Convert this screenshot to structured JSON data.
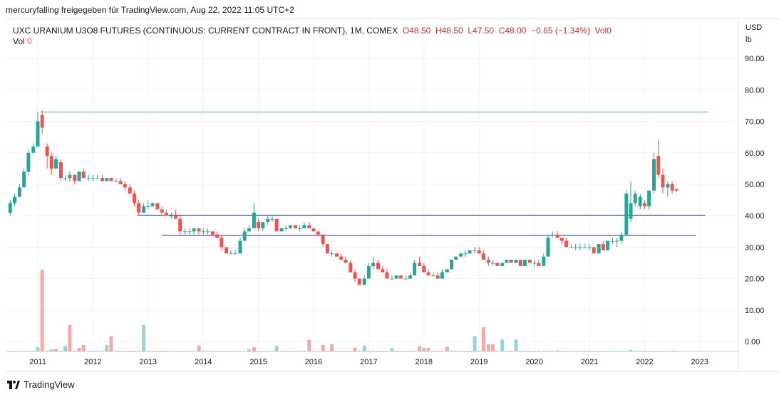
{
  "attribution": "mercuryfalling freigegeben für TradingView.com, Aug 22, 2022 11:05 UTC+2",
  "legend": {
    "symbol": "UXC URANIUM U3O8 FUTURES (CONTINUOUS: CURRENT CONTRACT IN FRONT), 1M, COMEX",
    "open": "O48.50",
    "high": "H48.50",
    "low": "L47.50",
    "close": "C48.00",
    "change": "−0.65 (−1.34%)",
    "vol_inline": "Vol0",
    "vol_label": "Vol",
    "vol_value": "0"
  },
  "axis": {
    "unit_line1": "USD",
    "unit_line2": "lb"
  },
  "footer": {
    "brand": "TradingView"
  },
  "colors": {
    "up": "#26a69a",
    "down": "#ef5350",
    "volume_up": "#9ad6cf",
    "volume_down": "#f7a9a7",
    "resistance": "#4caf50",
    "support": "#1f2f8f",
    "grid": "#f0f3fa"
  },
  "chart_data": {
    "type": "candlestick",
    "xlabel": "",
    "ylabel": "",
    "ylim": [
      -3,
      95
    ],
    "y_ticks": [
      "0.00",
      "10.00",
      "20.00",
      "30.00",
      "40.00",
      "50.00",
      "60.00",
      "70.00",
      "80.00",
      "90.00"
    ],
    "y_tick_values": [
      0,
      10,
      20,
      30,
      40,
      50,
      60,
      70,
      80,
      90
    ],
    "x_ticks": [
      "2011",
      "2012",
      "2013",
      "2014",
      "2015",
      "2016",
      "2017",
      "2018",
      "2019",
      "2020",
      "2021",
      "2022",
      "2023"
    ],
    "x_tick_values": [
      2011,
      2012,
      2013,
      2014,
      2015,
      2016,
      2017,
      2018,
      2019,
      2020,
      2021,
      2022,
      2023
    ],
    "horizontal_lines": [
      {
        "name": "resistance",
        "value": 73.0,
        "from": 2011.05,
        "to": 2023.15
      },
      {
        "name": "upper-support",
        "value": 40.2,
        "from": 2012.8,
        "to": 2023.1
      },
      {
        "name": "lower-support",
        "value": 33.8,
        "from": 2013.25,
        "to": 2022.93
      }
    ],
    "candles": [
      {
        "t": 2010.5,
        "o": 41,
        "h": 45,
        "l": 40,
        "c": 44
      },
      {
        "t": 2010.58,
        "o": 44,
        "h": 47,
        "l": 43,
        "c": 46
      },
      {
        "t": 2010.67,
        "o": 46,
        "h": 50,
        "l": 46,
        "c": 49
      },
      {
        "t": 2010.75,
        "o": 49,
        "h": 55,
        "l": 49,
        "c": 54
      },
      {
        "t": 2010.83,
        "o": 54,
        "h": 61,
        "l": 53,
        "c": 60
      },
      {
        "t": 2010.92,
        "o": 60,
        "h": 63,
        "l": 60,
        "c": 62
      },
      {
        "t": 2011.0,
        "o": 62,
        "h": 73,
        "l": 62,
        "c": 70
      },
      {
        "t": 2011.08,
        "o": 72,
        "h": 73.5,
        "l": 66,
        "c": 68
      },
      {
        "t": 2011.17,
        "o": 62,
        "h": 63,
        "l": 55,
        "c": 59
      },
      {
        "t": 2011.25,
        "o": 59,
        "h": 60,
        "l": 53,
        "c": 55
      },
      {
        "t": 2011.33,
        "o": 55,
        "h": 59,
        "l": 55,
        "c": 58
      },
      {
        "t": 2011.42,
        "o": 57,
        "h": 58,
        "l": 51,
        "c": 52
      },
      {
        "t": 2011.5,
        "o": 52,
        "h": 53,
        "l": 51,
        "c": 52
      },
      {
        "t": 2011.58,
        "o": 52,
        "h": 54,
        "l": 51,
        "c": 53
      },
      {
        "t": 2011.67,
        "o": 53,
        "h": 53,
        "l": 50,
        "c": 51
      },
      {
        "t": 2011.75,
        "o": 51,
        "h": 54,
        "l": 51,
        "c": 54
      },
      {
        "t": 2011.83,
        "o": 54,
        "h": 55,
        "l": 52,
        "c": 52
      },
      {
        "t": 2011.92,
        "o": 52,
        "h": 53,
        "l": 51,
        "c": 52
      },
      {
        "t": 2012.0,
        "o": 52,
        "h": 53,
        "l": 51,
        "c": 52
      },
      {
        "t": 2012.08,
        "o": 52,
        "h": 53,
        "l": 52,
        "c": 52
      },
      {
        "t": 2012.17,
        "o": 52,
        "h": 53,
        "l": 51,
        "c": 51
      },
      {
        "t": 2012.25,
        "o": 51,
        "h": 52,
        "l": 51,
        "c": 52
      },
      {
        "t": 2012.33,
        "o": 52,
        "h": 52,
        "l": 51,
        "c": 51
      },
      {
        "t": 2012.42,
        "o": 51,
        "h": 52,
        "l": 51,
        "c": 51
      },
      {
        "t": 2012.5,
        "o": 51,
        "h": 52,
        "l": 50,
        "c": 50
      },
      {
        "t": 2012.58,
        "o": 50,
        "h": 51,
        "l": 48,
        "c": 49
      },
      {
        "t": 2012.67,
        "o": 49,
        "h": 50,
        "l": 47,
        "c": 47
      },
      {
        "t": 2012.75,
        "o": 47,
        "h": 48,
        "l": 43,
        "c": 44
      },
      {
        "t": 2012.83,
        "o": 44,
        "h": 45,
        "l": 40,
        "c": 41
      },
      {
        "t": 2012.92,
        "o": 41,
        "h": 44,
        "l": 41,
        "c": 43
      },
      {
        "t": 2013.0,
        "o": 43,
        "h": 45,
        "l": 42,
        "c": 43
      },
      {
        "t": 2013.08,
        "o": 43,
        "h": 44,
        "l": 43,
        "c": 44
      },
      {
        "t": 2013.17,
        "o": 44,
        "h": 44,
        "l": 42,
        "c": 42
      },
      {
        "t": 2013.25,
        "o": 42,
        "h": 43,
        "l": 40,
        "c": 41
      },
      {
        "t": 2013.33,
        "o": 41,
        "h": 42,
        "l": 40,
        "c": 40
      },
      {
        "t": 2013.42,
        "o": 40,
        "h": 41,
        "l": 39,
        "c": 40
      },
      {
        "t": 2013.5,
        "o": 40,
        "h": 42,
        "l": 39,
        "c": 39
      },
      {
        "t": 2013.58,
        "o": 39,
        "h": 40,
        "l": 34,
        "c": 35
      },
      {
        "t": 2013.67,
        "o": 35,
        "h": 36,
        "l": 34,
        "c": 35
      },
      {
        "t": 2013.75,
        "o": 35,
        "h": 36,
        "l": 34,
        "c": 35
      },
      {
        "t": 2013.83,
        "o": 35,
        "h": 36,
        "l": 34,
        "c": 36
      },
      {
        "t": 2013.92,
        "o": 36,
        "h": 36,
        "l": 34,
        "c": 35
      },
      {
        "t": 2014.0,
        "o": 35,
        "h": 36,
        "l": 34,
        "c": 35
      },
      {
        "t": 2014.08,
        "o": 35,
        "h": 36,
        "l": 34,
        "c": 35
      },
      {
        "t": 2014.17,
        "o": 35,
        "h": 35,
        "l": 34,
        "c": 34
      },
      {
        "t": 2014.25,
        "o": 34,
        "h": 35,
        "l": 33,
        "c": 33
      },
      {
        "t": 2014.33,
        "o": 33,
        "h": 34,
        "l": 29,
        "c": 30
      },
      {
        "t": 2014.42,
        "o": 30,
        "h": 30,
        "l": 28,
        "c": 28
      },
      {
        "t": 2014.5,
        "o": 28,
        "h": 29,
        "l": 28,
        "c": 28
      },
      {
        "t": 2014.58,
        "o": 28,
        "h": 29,
        "l": 28,
        "c": 28
      },
      {
        "t": 2014.67,
        "o": 28,
        "h": 33,
        "l": 28,
        "c": 32
      },
      {
        "t": 2014.75,
        "o": 32,
        "h": 36,
        "l": 32,
        "c": 35
      },
      {
        "t": 2014.83,
        "o": 35,
        "h": 37,
        "l": 35,
        "c": 36
      },
      {
        "t": 2014.92,
        "o": 36,
        "h": 44,
        "l": 36,
        "c": 41
      },
      {
        "t": 2015.0,
        "o": 38,
        "h": 39,
        "l": 35,
        "c": 36
      },
      {
        "t": 2015.08,
        "o": 36,
        "h": 38,
        "l": 35,
        "c": 38
      },
      {
        "t": 2015.17,
        "o": 38,
        "h": 40,
        "l": 37,
        "c": 39
      },
      {
        "t": 2015.25,
        "o": 39,
        "h": 40,
        "l": 38,
        "c": 39
      },
      {
        "t": 2015.33,
        "o": 39,
        "h": 39,
        "l": 35,
        "c": 35
      },
      {
        "t": 2015.42,
        "o": 35,
        "h": 36,
        "l": 35,
        "c": 36
      },
      {
        "t": 2015.5,
        "o": 36,
        "h": 37,
        "l": 35,
        "c": 36
      },
      {
        "t": 2015.58,
        "o": 36,
        "h": 37,
        "l": 36,
        "c": 37
      },
      {
        "t": 2015.67,
        "o": 37,
        "h": 37,
        "l": 36,
        "c": 36
      },
      {
        "t": 2015.75,
        "o": 36,
        "h": 37,
        "l": 35,
        "c": 36
      },
      {
        "t": 2015.83,
        "o": 36,
        "h": 38,
        "l": 36,
        "c": 37
      },
      {
        "t": 2015.92,
        "o": 37,
        "h": 38,
        "l": 36,
        "c": 36
      },
      {
        "t": 2016.0,
        "o": 36,
        "h": 36,
        "l": 35,
        "c": 35
      },
      {
        "t": 2016.08,
        "o": 35,
        "h": 35,
        "l": 34,
        "c": 34
      },
      {
        "t": 2016.17,
        "o": 34,
        "h": 34,
        "l": 30,
        "c": 31
      },
      {
        "t": 2016.25,
        "o": 31,
        "h": 31,
        "l": 28,
        "c": 28
      },
      {
        "t": 2016.33,
        "o": 28,
        "h": 29,
        "l": 27,
        "c": 28
      },
      {
        "t": 2016.42,
        "o": 28,
        "h": 28,
        "l": 27,
        "c": 27
      },
      {
        "t": 2016.5,
        "o": 27,
        "h": 28,
        "l": 26,
        "c": 26
      },
      {
        "t": 2016.58,
        "o": 26,
        "h": 27,
        "l": 25,
        "c": 25
      },
      {
        "t": 2016.67,
        "o": 25,
        "h": 26,
        "l": 22,
        "c": 22
      },
      {
        "t": 2016.75,
        "o": 22,
        "h": 23,
        "l": 19,
        "c": 20
      },
      {
        "t": 2016.83,
        "o": 20,
        "h": 20,
        "l": 18,
        "c": 18
      },
      {
        "t": 2016.92,
        "o": 18,
        "h": 21,
        "l": 18,
        "c": 20
      },
      {
        "t": 2017.0,
        "o": 20,
        "h": 25,
        "l": 20,
        "c": 24
      },
      {
        "t": 2017.08,
        "o": 24,
        "h": 27,
        "l": 23,
        "c": 25
      },
      {
        "t": 2017.17,
        "o": 25,
        "h": 26,
        "l": 23,
        "c": 23
      },
      {
        "t": 2017.25,
        "o": 23,
        "h": 24,
        "l": 22,
        "c": 22
      },
      {
        "t": 2017.33,
        "o": 22,
        "h": 23,
        "l": 20,
        "c": 20
      },
      {
        "t": 2017.42,
        "o": 20,
        "h": 21,
        "l": 20,
        "c": 20
      },
      {
        "t": 2017.5,
        "o": 20,
        "h": 21,
        "l": 20,
        "c": 21
      },
      {
        "t": 2017.58,
        "o": 21,
        "h": 21,
        "l": 20,
        "c": 20
      },
      {
        "t": 2017.67,
        "o": 20,
        "h": 21,
        "l": 20,
        "c": 20
      },
      {
        "t": 2017.75,
        "o": 20,
        "h": 22,
        "l": 20,
        "c": 21
      },
      {
        "t": 2017.83,
        "o": 21,
        "h": 26,
        "l": 21,
        "c": 25
      },
      {
        "t": 2017.92,
        "o": 25,
        "h": 27,
        "l": 24,
        "c": 24
      },
      {
        "t": 2018.0,
        "o": 24,
        "h": 25,
        "l": 22,
        "c": 22
      },
      {
        "t": 2018.08,
        "o": 22,
        "h": 23,
        "l": 21,
        "c": 21
      },
      {
        "t": 2018.17,
        "o": 21,
        "h": 22,
        "l": 21,
        "c": 21
      },
      {
        "t": 2018.25,
        "o": 21,
        "h": 22,
        "l": 20,
        "c": 20
      },
      {
        "t": 2018.33,
        "o": 20,
        "h": 23,
        "l": 20,
        "c": 22
      },
      {
        "t": 2018.42,
        "o": 22,
        "h": 23,
        "l": 22,
        "c": 23
      },
      {
        "t": 2018.5,
        "o": 23,
        "h": 26,
        "l": 23,
        "c": 26
      },
      {
        "t": 2018.58,
        "o": 26,
        "h": 27,
        "l": 26,
        "c": 27
      },
      {
        "t": 2018.67,
        "o": 27,
        "h": 28,
        "l": 27,
        "c": 28
      },
      {
        "t": 2018.75,
        "o": 28,
        "h": 29,
        "l": 27,
        "c": 28
      },
      {
        "t": 2018.83,
        "o": 28,
        "h": 29,
        "l": 28,
        "c": 29
      },
      {
        "t": 2018.92,
        "o": 29,
        "h": 30,
        "l": 28,
        "c": 29
      },
      {
        "t": 2019.0,
        "o": 29,
        "h": 30,
        "l": 28,
        "c": 28
      },
      {
        "t": 2019.08,
        "o": 28,
        "h": 29,
        "l": 26,
        "c": 26
      },
      {
        "t": 2019.17,
        "o": 26,
        "h": 27,
        "l": 24,
        "c": 25
      },
      {
        "t": 2019.25,
        "o": 25,
        "h": 26,
        "l": 24,
        "c": 25
      },
      {
        "t": 2019.33,
        "o": 25,
        "h": 25,
        "l": 24,
        "c": 24
      },
      {
        "t": 2019.42,
        "o": 24,
        "h": 25,
        "l": 24,
        "c": 25
      },
      {
        "t": 2019.5,
        "o": 25,
        "h": 26,
        "l": 25,
        "c": 26
      },
      {
        "t": 2019.58,
        "o": 26,
        "h": 26,
        "l": 25,
        "c": 25
      },
      {
        "t": 2019.67,
        "o": 25,
        "h": 26,
        "l": 25,
        "c": 26
      },
      {
        "t": 2019.75,
        "o": 26,
        "h": 26,
        "l": 24,
        "c": 24
      },
      {
        "t": 2019.83,
        "o": 24,
        "h": 26,
        "l": 24,
        "c": 26
      },
      {
        "t": 2019.92,
        "o": 26,
        "h": 26,
        "l": 25,
        "c": 25
      },
      {
        "t": 2020.0,
        "o": 25,
        "h": 26,
        "l": 24,
        "c": 25
      },
      {
        "t": 2020.08,
        "o": 25,
        "h": 26,
        "l": 24,
        "c": 24
      },
      {
        "t": 2020.17,
        "o": 24,
        "h": 28,
        "l": 24,
        "c": 27
      },
      {
        "t": 2020.25,
        "o": 27,
        "h": 34,
        "l": 27,
        "c": 33
      },
      {
        "t": 2020.33,
        "o": 34,
        "h": 35,
        "l": 33,
        "c": 34
      },
      {
        "t": 2020.42,
        "o": 34,
        "h": 35,
        "l": 33,
        "c": 33
      },
      {
        "t": 2020.5,
        "o": 33,
        "h": 33,
        "l": 31,
        "c": 32
      },
      {
        "t": 2020.58,
        "o": 32,
        "h": 33,
        "l": 30,
        "c": 30
      },
      {
        "t": 2020.67,
        "o": 30,
        "h": 31,
        "l": 30,
        "c": 30
      },
      {
        "t": 2020.75,
        "o": 30,
        "h": 31,
        "l": 29,
        "c": 30
      },
      {
        "t": 2020.83,
        "o": 30,
        "h": 31,
        "l": 29,
        "c": 30
      },
      {
        "t": 2020.92,
        "o": 30,
        "h": 31,
        "l": 30,
        "c": 30
      },
      {
        "t": 2021.0,
        "o": 30,
        "h": 31,
        "l": 29,
        "c": 30
      },
      {
        "t": 2021.08,
        "o": 30,
        "h": 30,
        "l": 28,
        "c": 28
      },
      {
        "t": 2021.17,
        "o": 28,
        "h": 31,
        "l": 28,
        "c": 31
      },
      {
        "t": 2021.25,
        "o": 31,
        "h": 32,
        "l": 29,
        "c": 29
      },
      {
        "t": 2021.33,
        "o": 29,
        "h": 32,
        "l": 29,
        "c": 32
      },
      {
        "t": 2021.42,
        "o": 32,
        "h": 33,
        "l": 31,
        "c": 32
      },
      {
        "t": 2021.5,
        "o": 32,
        "h": 33,
        "l": 30,
        "c": 32
      },
      {
        "t": 2021.58,
        "o": 32,
        "h": 35,
        "l": 31,
        "c": 34
      },
      {
        "t": 2021.67,
        "o": 34,
        "h": 48,
        "l": 34,
        "c": 47
      },
      {
        "t": 2021.75,
        "o": 39,
        "h": 51,
        "l": 38,
        "c": 44
      },
      {
        "t": 2021.83,
        "o": 44,
        "h": 48,
        "l": 43,
        "c": 47
      },
      {
        "t": 2021.92,
        "o": 43,
        "h": 47,
        "l": 42,
        "c": 46
      },
      {
        "t": 2022.0,
        "o": 44,
        "h": 45,
        "l": 42,
        "c": 43
      },
      {
        "t": 2022.08,
        "o": 43,
        "h": 48,
        "l": 42,
        "c": 48
      },
      {
        "t": 2022.17,
        "o": 48,
        "h": 60,
        "l": 47,
        "c": 58
      },
      {
        "t": 2022.25,
        "o": 59,
        "h": 64,
        "l": 52,
        "c": 53
      },
      {
        "t": 2022.33,
        "o": 53,
        "h": 55,
        "l": 47,
        "c": 49
      },
      {
        "t": 2022.42,
        "o": 49,
        "h": 51,
        "l": 46,
        "c": 50
      },
      {
        "t": 2022.5,
        "o": 50,
        "h": 51,
        "l": 47,
        "c": 48
      },
      {
        "t": 2022.58,
        "o": 48.5,
        "h": 48.5,
        "l": 47.5,
        "c": 48
      }
    ],
    "volume": [
      {
        "t": 2011.0,
        "v": 1.2,
        "dir": "up"
      },
      {
        "t": 2011.08,
        "v": 23,
        "dir": "down"
      },
      {
        "t": 2011.25,
        "v": 0.6,
        "dir": "up"
      },
      {
        "t": 2011.33,
        "v": 0.7,
        "dir": "down"
      },
      {
        "t": 2011.5,
        "v": 1.6,
        "dir": "up"
      },
      {
        "t": 2011.58,
        "v": 7.5,
        "dir": "down"
      },
      {
        "t": 2011.75,
        "v": 1.0,
        "dir": "down"
      },
      {
        "t": 2011.83,
        "v": 1.8,
        "dir": "down"
      },
      {
        "t": 2012.25,
        "v": 1.8,
        "dir": "up"
      },
      {
        "t": 2012.33,
        "v": 4.3,
        "dir": "down"
      },
      {
        "t": 2012.92,
        "v": 7.5,
        "dir": "up"
      },
      {
        "t": 2013.92,
        "v": 1.7,
        "dir": "down"
      },
      {
        "t": 2014.83,
        "v": 0.6,
        "dir": "up"
      },
      {
        "t": 2014.92,
        "v": 1.2,
        "dir": "down"
      },
      {
        "t": 2015.33,
        "v": 1.6,
        "dir": "up"
      },
      {
        "t": 2015.92,
        "v": 3.3,
        "dir": "down"
      },
      {
        "t": 2016.17,
        "v": 1.8,
        "dir": "down"
      },
      {
        "t": 2016.33,
        "v": 2.0,
        "dir": "down"
      },
      {
        "t": 2016.75,
        "v": 1.0,
        "dir": "down"
      },
      {
        "t": 2016.92,
        "v": 1.6,
        "dir": "up"
      },
      {
        "t": 2017.42,
        "v": 0.9,
        "dir": "up"
      },
      {
        "t": 2017.92,
        "v": 1.5,
        "dir": "down"
      },
      {
        "t": 2018.0,
        "v": 1.1,
        "dir": "up"
      },
      {
        "t": 2018.08,
        "v": 1.0,
        "dir": "down"
      },
      {
        "t": 2018.42,
        "v": 1.3,
        "dir": "down"
      },
      {
        "t": 2018.92,
        "v": 4.3,
        "dir": "up"
      },
      {
        "t": 2019.08,
        "v": 6.8,
        "dir": "down"
      },
      {
        "t": 2019.17,
        "v": 2.0,
        "dir": "down"
      },
      {
        "t": 2019.25,
        "v": 2.0,
        "dir": "down"
      },
      {
        "t": 2019.42,
        "v": 3.3,
        "dir": "up"
      },
      {
        "t": 2019.67,
        "v": 3.3,
        "dir": "up"
      },
      {
        "t": 2020.42,
        "v": 0.3,
        "dir": "down"
      },
      {
        "t": 2021.75,
        "v": 0.4,
        "dir": "up"
      }
    ]
  }
}
